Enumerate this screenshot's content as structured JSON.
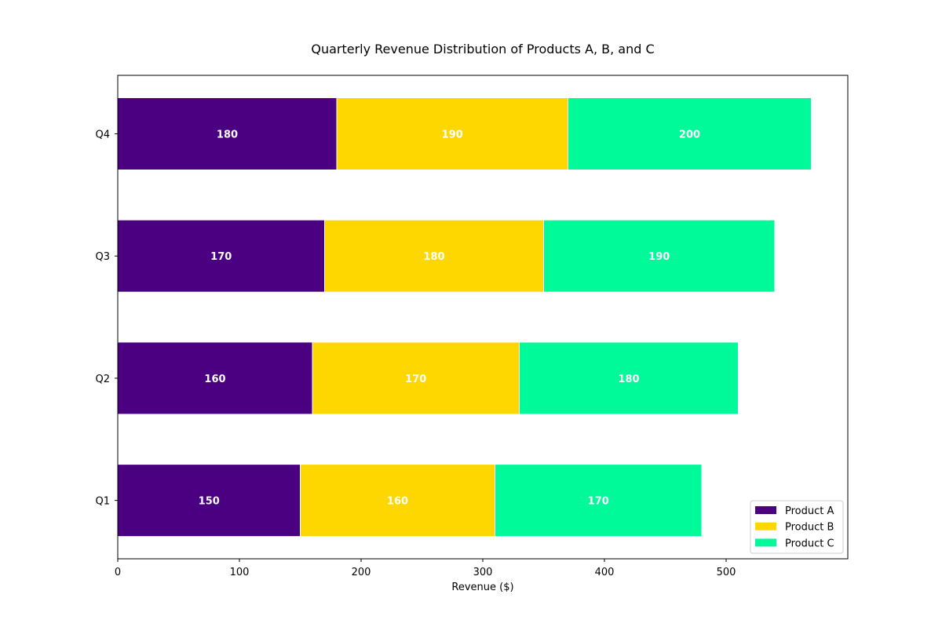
{
  "chart_data": {
    "type": "bar",
    "orientation": "horizontal",
    "stacked": true,
    "title": "Quarterly Revenue Distribution of Products A, B, and C",
    "xlabel": "Revenue ($)",
    "ylabel": "",
    "categories": [
      "Q1",
      "Q2",
      "Q3",
      "Q4"
    ],
    "series": [
      {
        "name": "Product A",
        "color": "#4b0082",
        "values": [
          150,
          160,
          170,
          180
        ]
      },
      {
        "name": "Product B",
        "color": "#ffd700",
        "values": [
          160,
          170,
          180,
          190
        ]
      },
      {
        "name": "Product C",
        "color": "#00fa9a",
        "values": [
          170,
          180,
          190,
          200
        ]
      }
    ],
    "xlim": [
      0,
      600
    ],
    "xticks": [
      0,
      100,
      200,
      300,
      400,
      500
    ],
    "grid": false,
    "legend_position": "lower-right"
  }
}
